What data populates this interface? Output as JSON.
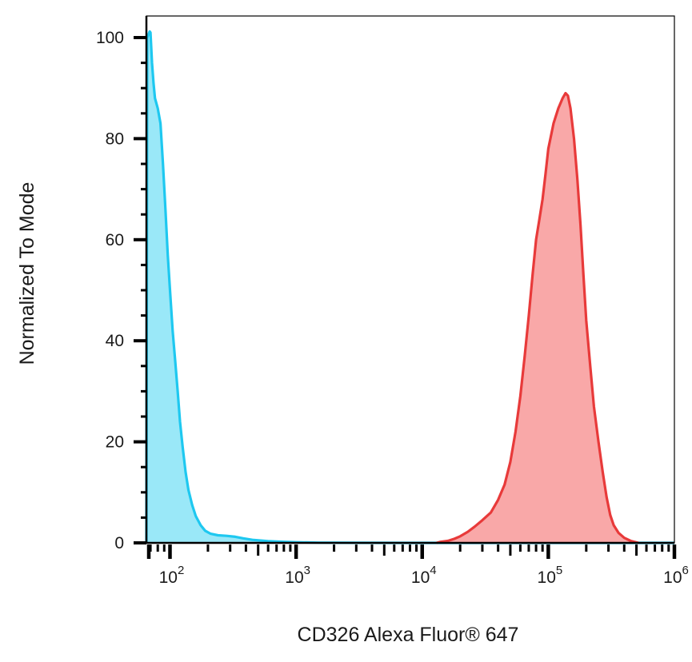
{
  "chart_data": {
    "type": "area",
    "xlabel": "CD326 Alexa Fluor® 647",
    "ylabel": "Normalized To Mode",
    "x_scale": "log",
    "xlim": [
      65,
      1000000
    ],
    "ylim": [
      0,
      105
    ],
    "x_ticks": [
      {
        "value": 100,
        "base": "10",
        "exp": "2"
      },
      {
        "value": 1000,
        "base": "10",
        "exp": "3"
      },
      {
        "value": 10000,
        "base": "10",
        "exp": "4"
      },
      {
        "value": 100000,
        "base": "10",
        "exp": "5"
      },
      {
        "value": 1000000,
        "base": "10",
        "exp": "6"
      }
    ],
    "y_ticks": [
      0,
      20,
      40,
      60,
      80,
      100
    ],
    "grid": false,
    "series": [
      {
        "color": "#1ec8f0",
        "fill": "#9ae8f8",
        "points": [
          [
            65,
            0
          ],
          [
            66,
            100
          ],
          [
            69,
            101.2
          ],
          [
            70,
            101
          ],
          [
            72,
            95
          ],
          [
            74,
            91
          ],
          [
            76,
            88
          ],
          [
            80,
            86
          ],
          [
            84,
            83
          ],
          [
            88,
            75
          ],
          [
            92,
            66
          ],
          [
            96,
            57
          ],
          [
            100,
            50
          ],
          [
            105,
            42
          ],
          [
            110,
            36
          ],
          [
            115,
            30
          ],
          [
            120,
            24
          ],
          [
            126,
            19
          ],
          [
            133,
            14
          ],
          [
            140,
            10.5
          ],
          [
            150,
            7.5
          ],
          [
            160,
            5.3
          ],
          [
            175,
            3.5
          ],
          [
            190,
            2.4
          ],
          [
            210,
            1.8
          ],
          [
            240,
            1.5
          ],
          [
            280,
            1.4
          ],
          [
            330,
            1.2
          ],
          [
            380,
            0.9
          ],
          [
            450,
            0.6
          ],
          [
            600,
            0.35
          ],
          [
            800,
            0.2
          ],
          [
            1000,
            0.12
          ],
          [
            1500,
            0.05
          ],
          [
            3000,
            0.02
          ],
          [
            10000,
            0
          ],
          [
            1000000,
            0
          ]
        ]
      },
      {
        "color": "#e83a3a",
        "fill": "#f9a8a8",
        "points": [
          [
            13000,
            0
          ],
          [
            14000,
            0.2
          ],
          [
            16000,
            0.4
          ],
          [
            18000,
            0.8
          ],
          [
            20000,
            1.3
          ],
          [
            23000,
            2.2
          ],
          [
            26000,
            3.2
          ],
          [
            30000,
            4.5
          ],
          [
            35000,
            6
          ],
          [
            40000,
            8.5
          ],
          [
            45000,
            11.5
          ],
          [
            50000,
            16
          ],
          [
            55000,
            22
          ],
          [
            60000,
            29
          ],
          [
            65000,
            37
          ],
          [
            70000,
            45
          ],
          [
            75000,
            53
          ],
          [
            80000,
            60
          ],
          [
            85000,
            64
          ],
          [
            90000,
            68
          ],
          [
            95000,
            73
          ],
          [
            100000,
            78
          ],
          [
            110000,
            83
          ],
          [
            120000,
            86
          ],
          [
            130000,
            88
          ],
          [
            137000,
            89
          ],
          [
            143000,
            88.5
          ],
          [
            150000,
            86
          ],
          [
            160000,
            80
          ],
          [
            170000,
            72
          ],
          [
            180000,
            63
          ],
          [
            190000,
            53
          ],
          [
            200000,
            44
          ],
          [
            215000,
            35
          ],
          [
            230000,
            27
          ],
          [
            250000,
            20
          ],
          [
            270000,
            14
          ],
          [
            290000,
            9
          ],
          [
            310000,
            5.5
          ],
          [
            330000,
            3.5
          ],
          [
            360000,
            2
          ],
          [
            400000,
            1
          ],
          [
            450000,
            0.4
          ],
          [
            520000,
            0
          ]
        ]
      }
    ]
  }
}
